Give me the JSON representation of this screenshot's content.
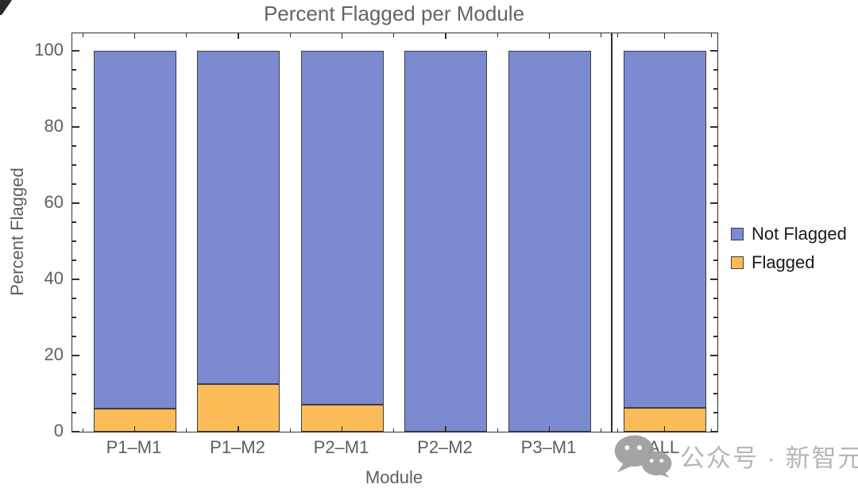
{
  "title": "Percent Flagged per Module",
  "axes": {
    "y": {
      "label": "Percent Flagged",
      "tick_values": [
        0,
        20,
        40,
        60,
        80,
        100
      ],
      "tick_labels": [
        "0",
        "20",
        "40",
        "60",
        "80",
        "100"
      ]
    },
    "x": {
      "label": "Module",
      "tick_labels": [
        "P1–M1",
        "P1–M2",
        "P2–M1",
        "P2–M2",
        "P3–M1",
        "ALL"
      ]
    }
  },
  "legend": {
    "items": [
      {
        "label": "Not Flagged",
        "color": "#7B8AD0"
      },
      {
        "label": "Flagged",
        "color": "#FBBC57"
      }
    ]
  },
  "colors": {
    "not_flagged": "#7B8AD0",
    "flagged": "#FBBC57",
    "bar_edge": "#3d3d3d",
    "frame": "#2f2f2f",
    "title_text": "#646464",
    "tick_label_text": "#5e5e5e",
    "legend_text": "#1a1a1a",
    "watermark_text": "#b6b6b6"
  },
  "chart_data": {
    "type": "bar",
    "stacked": true,
    "title": "Percent Flagged per Module",
    "xlabel": "Module",
    "ylabel": "Percent Flagged",
    "categories": [
      "P1–M1",
      "P1–M2",
      "P2–M1",
      "P2–M2",
      "P3–M1",
      "ALL"
    ],
    "series": [
      {
        "name": "Not Flagged",
        "color": "#7B8AD0",
        "values": [
          94,
          87.6,
          93,
          100,
          100,
          93.8
        ]
      },
      {
        "name": "Flagged",
        "color": "#FBBC57",
        "values": [
          6,
          12.4,
          7,
          0,
          0,
          6.2
        ]
      }
    ],
    "ylim": [
      0,
      104.6
    ],
    "y_major_ticks": [
      0,
      20,
      40,
      60,
      80,
      100
    ],
    "y_minor_tick_step": 5,
    "grid": false,
    "legend_position": "right-outside",
    "separator_after_index": 4,
    "bar_totals": [
      100,
      100,
      100,
      100,
      100,
      100
    ]
  },
  "watermark": {
    "icon": "wechat-icon",
    "text": "公众号 · 新智元"
  }
}
